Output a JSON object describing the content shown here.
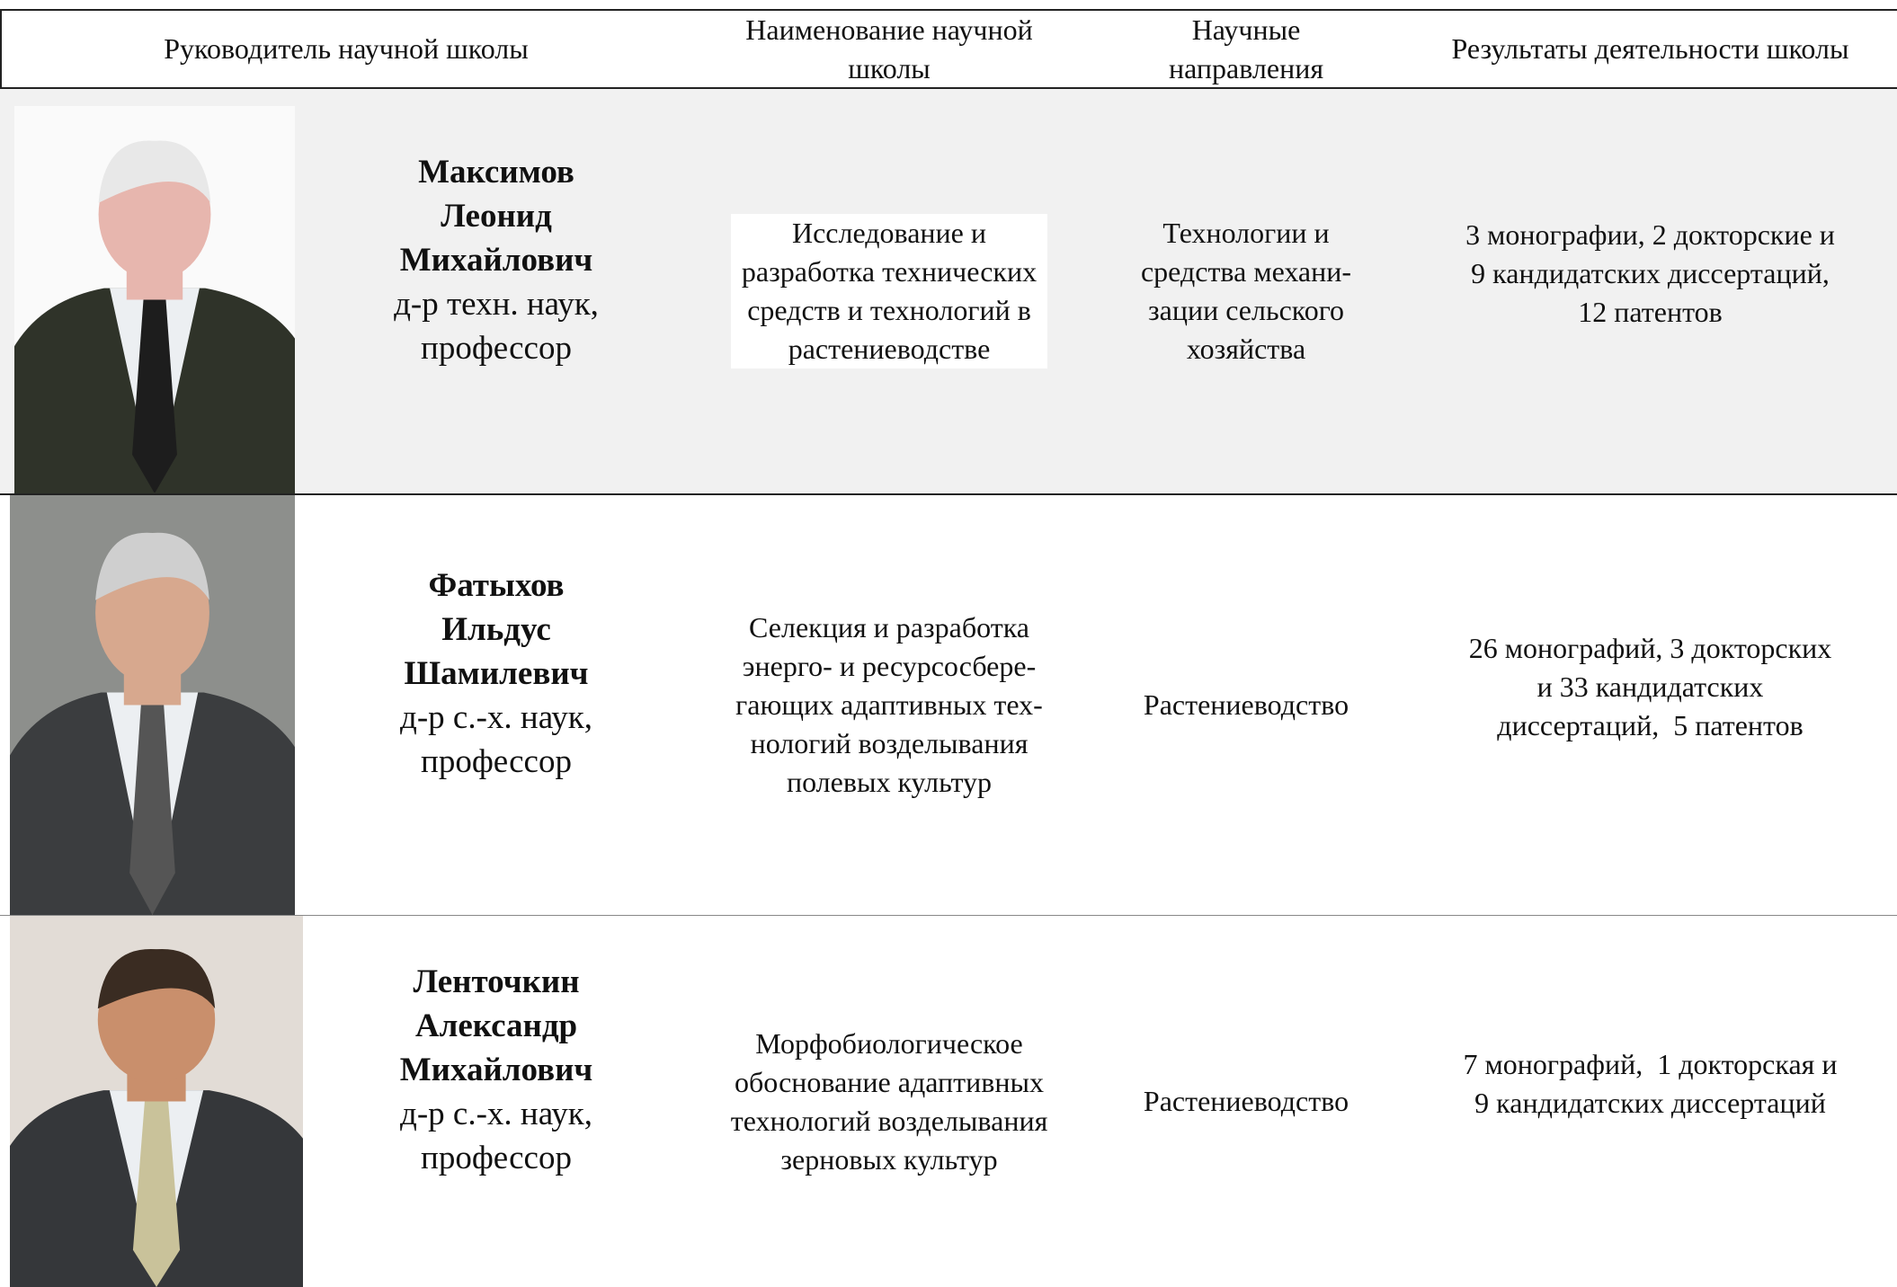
{
  "header": [
    [
      "Руководитель научной школы"
    ],
    [
      "Наименование научной",
      "школы"
    ],
    [
      "Научные",
      "направления"
    ],
    [
      "Результаты деятельности школы"
    ]
  ],
  "rows": [
    {
      "name": [
        "Максимов",
        "Леонид",
        "Михайлович"
      ],
      "degree": [
        "д-р техн. наук,",
        "профессор"
      ],
      "school": [
        "Исследование и",
        "разработка технических",
        "средств и технологий в",
        "растениеводстве"
      ],
      "direction": [
        "Технологии и",
        "средства механи-",
        "зации сельского",
        "хозяйства"
      ],
      "results": [
        "3 монографии, 2 докторские и",
        "9 кандидатских диссертаций,",
        "12 патентов"
      ]
    },
    {
      "name": [
        "Фатыхов",
        "Ильдус",
        "Шамилевич"
      ],
      "degree": [
        "д-р с.-х. наук,",
        "профессор"
      ],
      "school": [
        "Селекция и разработка",
        "энерго- и ресурсосбере-",
        "гающих адаптивных тех-",
        "нологий возделывания",
        "полевых культур"
      ],
      "direction": [
        "Растениеводство"
      ],
      "results": [
        "26 монографий, 3 докторских",
        "и 33 кандидатских",
        "диссертаций,  5 патентов"
      ]
    },
    {
      "name": [
        "Ленточкин",
        "Александр",
        "Михайлович"
      ],
      "degree": [
        "д-р с.-х. наук,",
        "профессор"
      ],
      "school": [
        "Морфобиологическое",
        "обоснование адаптивных",
        "технологий возделывания",
        "зерновых культур"
      ],
      "direction": [
        "Растениеводство"
      ],
      "results": [
        "7 монографий,  1 докторская и",
        "9 кандидатских диссертаций"
      ]
    }
  ]
}
